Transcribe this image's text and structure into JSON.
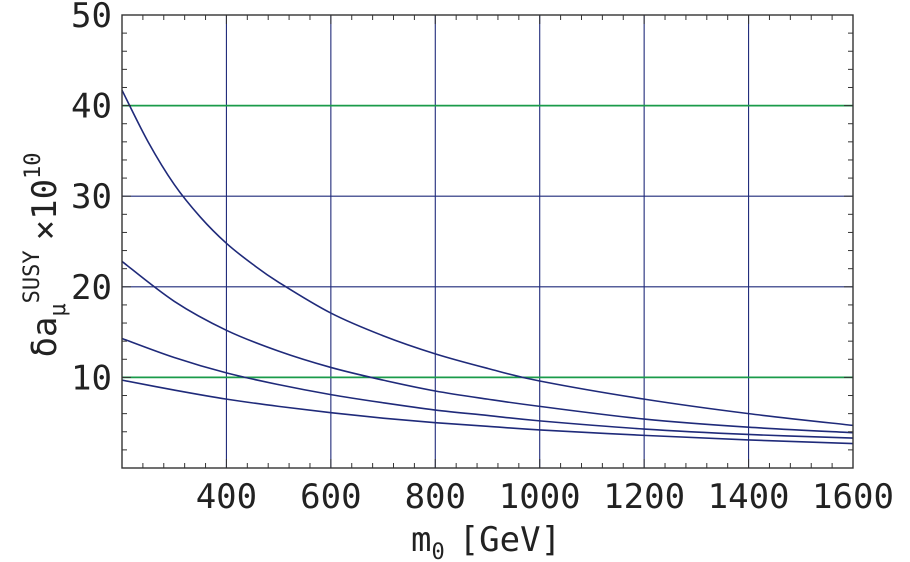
{
  "chart_data": {
    "type": "line",
    "title": "",
    "xlabel": {
      "base": "m",
      "subscript": "0",
      "unit": "[GeV]"
    },
    "ylabel": {
      "symbol": "δa",
      "subscript": "μ",
      "superscript": "SUSY",
      "factor": "×10",
      "exponent": "10"
    },
    "xlim": [
      200,
      1600
    ],
    "ylim": [
      0,
      50
    ],
    "xticks": [
      400,
      600,
      800,
      1000,
      1200,
      1400,
      1600
    ],
    "yticks": [
      10,
      20,
      30,
      40,
      50
    ],
    "xtick_labels": [
      "400",
      "600",
      "800",
      "1000",
      "1200",
      "1400",
      "1600"
    ],
    "ytick_labels": [
      "10",
      "20",
      "30",
      "40",
      "50"
    ],
    "grid": true,
    "reference_lines": [
      {
        "y": 40,
        "color": "#1a9b4a"
      },
      {
        "y": 10,
        "color": "#1a9b4a"
      }
    ],
    "series": [
      {
        "x": [
          200,
          250,
          300,
          350,
          400,
          450,
          500,
          600,
          700,
          800,
          900,
          1000,
          1200,
          1400,
          1600
        ],
        "y": [
          41.7,
          36.0,
          31.3,
          27.7,
          24.8,
          22.5,
          20.5,
          17.1,
          14.6,
          12.6,
          11.0,
          9.6,
          7.6,
          6.0,
          4.7
        ]
      },
      {
        "x": [
          200,
          300,
          400,
          500,
          600,
          700,
          800,
          900,
          1000,
          1200,
          1400,
          1600
        ],
        "y": [
          22.8,
          18.4,
          15.2,
          12.9,
          11.1,
          9.7,
          8.5,
          7.6,
          6.8,
          5.4,
          4.5,
          3.9
        ]
      },
      {
        "x": [
          200,
          300,
          400,
          500,
          600,
          700,
          800,
          900,
          1000,
          1200,
          1400,
          1600
        ],
        "y": [
          14.3,
          12.2,
          10.5,
          9.2,
          8.1,
          7.2,
          6.4,
          5.8,
          5.2,
          4.3,
          3.7,
          3.3
        ]
      },
      {
        "x": [
          200,
          300,
          400,
          500,
          600,
          700,
          800,
          900,
          1000,
          1200,
          1400,
          1600
        ],
        "y": [
          9.7,
          8.6,
          7.6,
          6.8,
          6.1,
          5.5,
          5.0,
          4.6,
          4.2,
          3.6,
          3.1,
          2.7
        ]
      }
    ],
    "colors": {
      "curves": "#1f2a7a",
      "grid": "#1f2a7a",
      "frame": "#333333",
      "reference": "#1a9b4a"
    }
  }
}
